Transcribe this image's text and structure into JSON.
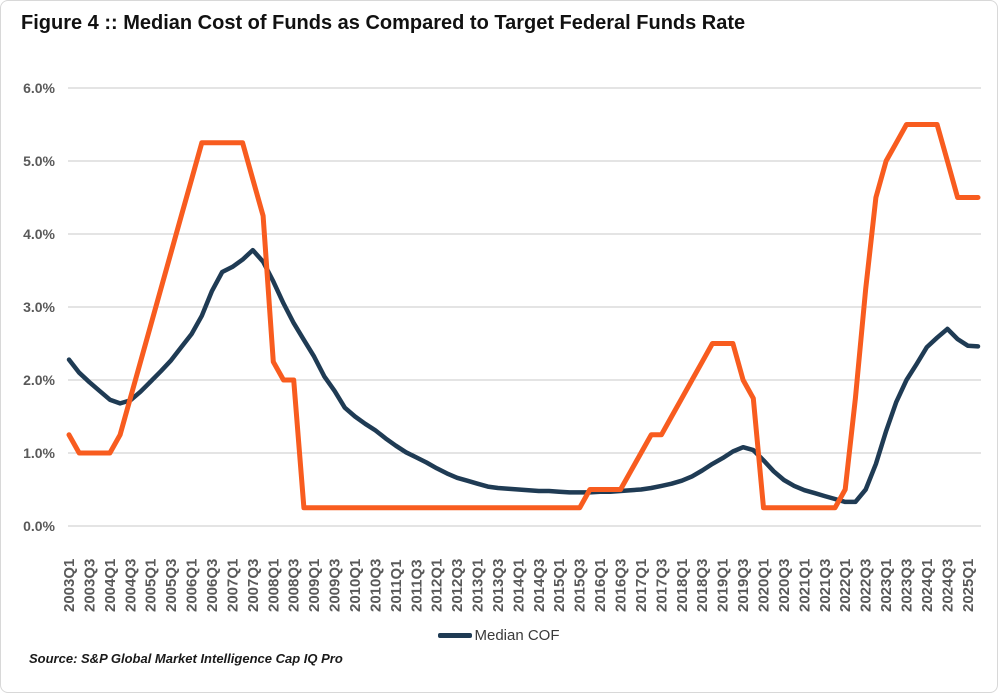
{
  "title": "Figure 4 :: Median Cost of Funds as Compared to Target Federal Funds Rate",
  "source": "Source: S&P Global Market Intelligence Cap IQ Pro",
  "legend": {
    "median_cof_label": "Median COF"
  },
  "colors": {
    "median_cof": "#1f3b54",
    "fed_funds": "#f85c1f",
    "gridline": "#c9c9c9",
    "tick_text": "#595959"
  },
  "chart_data": {
    "type": "line",
    "title": "Figure 4 :: Median Cost of Funds as Compared to Target Federal Funds Rate",
    "xlabel": "",
    "ylabel": "",
    "ylim": [
      0,
      6
    ],
    "ytick_labels": [
      "0.0%",
      "1.0%",
      "2.0%",
      "3.0%",
      "4.0%",
      "5.0%",
      "6.0%"
    ],
    "x_tick_every": 2,
    "grid": "horizontal",
    "legend_position": "bottom-center",
    "x": [
      "2003Q1",
      "2003Q2",
      "2003Q3",
      "2003Q4",
      "2004Q1",
      "2004Q2",
      "2004Q3",
      "2004Q4",
      "2005Q1",
      "2005Q2",
      "2005Q3",
      "2005Q4",
      "2006Q1",
      "2006Q2",
      "2006Q3",
      "2006Q4",
      "2007Q1",
      "2007Q2",
      "2007Q3",
      "2007Q4",
      "2008Q1",
      "2008Q2",
      "2008Q3",
      "2008Q4",
      "2009Q1",
      "2009Q2",
      "2009Q3",
      "2009Q4",
      "2010Q1",
      "2010Q2",
      "2010Q3",
      "2010Q4",
      "2011Q1",
      "2011Q2",
      "2011Q3",
      "2011Q4",
      "2012Q1",
      "2012Q2",
      "2012Q3",
      "2012Q4",
      "2013Q1",
      "2013Q2",
      "2013Q3",
      "2013Q4",
      "2014Q1",
      "2014Q2",
      "2014Q3",
      "2014Q4",
      "2015Q1",
      "2015Q2",
      "2015Q3",
      "2015Q4",
      "2016Q1",
      "2016Q2",
      "2016Q3",
      "2016Q4",
      "2017Q1",
      "2017Q2",
      "2017Q3",
      "2017Q4",
      "2018Q1",
      "2018Q2",
      "2018Q3",
      "2018Q4",
      "2019Q1",
      "2019Q2",
      "2019Q3",
      "2019Q4",
      "2020Q1",
      "2020Q2",
      "2020Q3",
      "2020Q4",
      "2021Q1",
      "2021Q2",
      "2021Q3",
      "2021Q4",
      "2022Q1",
      "2022Q2",
      "2022Q3",
      "2022Q4",
      "2023Q1",
      "2023Q2",
      "2023Q3",
      "2023Q4",
      "2024Q1",
      "2024Q2",
      "2024Q3",
      "2024Q4",
      "2025Q1",
      "2025Q2"
    ],
    "series": [
      {
        "name": "Median COF",
        "color": "#1f3b54",
        "stroke_width": 4.5,
        "in_legend": true,
        "values": [
          2.28,
          2.1,
          1.97,
          1.85,
          1.73,
          1.68,
          1.72,
          1.84,
          1.98,
          2.12,
          2.27,
          2.45,
          2.63,
          2.88,
          3.22,
          3.48,
          3.55,
          3.65,
          3.78,
          3.62,
          3.35,
          3.05,
          2.78,
          2.55,
          2.32,
          2.05,
          1.85,
          1.62,
          1.5,
          1.4,
          1.31,
          1.2,
          1.1,
          1.01,
          0.94,
          0.87,
          0.79,
          0.72,
          0.66,
          0.62,
          0.58,
          0.54,
          0.52,
          0.51,
          0.5,
          0.49,
          0.48,
          0.48,
          0.47,
          0.46,
          0.46,
          0.46,
          0.47,
          0.47,
          0.48,
          0.49,
          0.5,
          0.52,
          0.55,
          0.58,
          0.62,
          0.68,
          0.76,
          0.85,
          0.93,
          1.02,
          1.08,
          1.04,
          0.9,
          0.75,
          0.63,
          0.55,
          0.49,
          0.45,
          0.41,
          0.37,
          0.33,
          0.33,
          0.5,
          0.85,
          1.3,
          1.7,
          2.0,
          2.22,
          2.45,
          2.58,
          2.7,
          2.56,
          2.47,
          2.46
        ]
      },
      {
        "name": "Target Federal Funds Rate",
        "color": "#f85c1f",
        "stroke_width": 5,
        "in_legend": false,
        "values": [
          1.25,
          1.0,
          1.0,
          1.0,
          1.0,
          1.25,
          1.75,
          2.25,
          2.75,
          3.25,
          3.75,
          4.25,
          4.75,
          5.25,
          5.25,
          5.25,
          5.25,
          5.25,
          4.75,
          4.25,
          2.25,
          2.0,
          2.0,
          0.25,
          0.25,
          0.25,
          0.25,
          0.25,
          0.25,
          0.25,
          0.25,
          0.25,
          0.25,
          0.25,
          0.25,
          0.25,
          0.25,
          0.25,
          0.25,
          0.25,
          0.25,
          0.25,
          0.25,
          0.25,
          0.25,
          0.25,
          0.25,
          0.25,
          0.25,
          0.25,
          0.25,
          0.5,
          0.5,
          0.5,
          0.5,
          0.75,
          1.0,
          1.25,
          1.25,
          1.5,
          1.75,
          2.0,
          2.25,
          2.5,
          2.5,
          2.5,
          2.0,
          1.75,
          0.25,
          0.25,
          0.25,
          0.25,
          0.25,
          0.25,
          0.25,
          0.25,
          0.5,
          1.75,
          3.25,
          4.5,
          5.0,
          5.25,
          5.5,
          5.5,
          5.5,
          5.5,
          5.0,
          4.5,
          4.5,
          4.5
        ]
      }
    ]
  }
}
